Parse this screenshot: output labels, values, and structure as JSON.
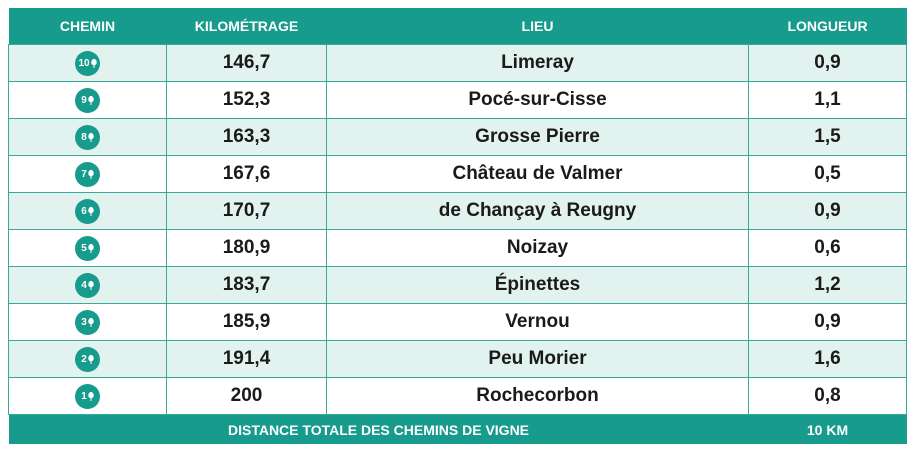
{
  "table": {
    "headers": [
      "CHEMIN",
      "KILOMÉTRAGE",
      "LIEU",
      "LONGUEUR"
    ],
    "rows": [
      [
        "10",
        "146,7",
        "Limeray",
        "0,9"
      ],
      [
        "9",
        "152,3",
        "Pocé-sur-Cisse",
        "1,1"
      ],
      [
        "8",
        "163,3",
        "Grosse Pierre",
        "1,5"
      ],
      [
        "7",
        "167,6",
        "Château de Valmer",
        "0,5"
      ],
      [
        "6",
        "170,7",
        "de Chançay à Reugny",
        "0,9"
      ],
      [
        "5",
        "180,9",
        "Noizay",
        "0,6"
      ],
      [
        "4",
        "183,7",
        "Épinettes",
        "1,2"
      ],
      [
        "3",
        "185,9",
        "Vernou",
        "0,9"
      ],
      [
        "2",
        "191,4",
        "Peu Morier",
        "1,6"
      ],
      [
        "1",
        "200",
        "Rochecorbon",
        "0,8"
      ]
    ],
    "footer": [
      "DISTANCE TOTALE DES CHEMINS DE VIGNE",
      "10 KM"
    ]
  }
}
